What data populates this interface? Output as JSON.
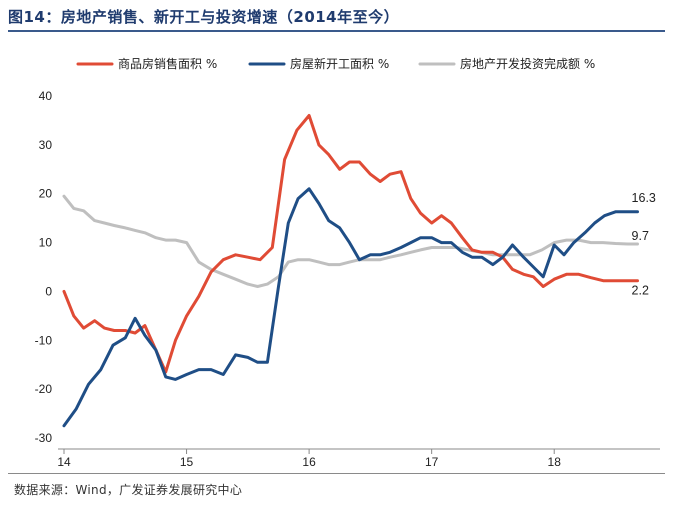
{
  "figure": {
    "title": "图14：房地产销售、新开工与投资增速（2014年至今）",
    "source": "数据来源：Wind，广发证券发展研究中心"
  },
  "chart_data": {
    "type": "line",
    "title": "房地产销售、新开工与投资增速（2014年至今）",
    "xlabel": "",
    "ylabel": "",
    "ylim": [
      -30,
      40
    ],
    "yticks": [
      -30,
      -20,
      -10,
      0,
      10,
      20,
      30,
      40
    ],
    "ytick_labels": [
      "-30",
      "-20",
      "-10",
      "0",
      "10",
      "20",
      "30",
      "40"
    ],
    "xlim": [
      2014.0,
      2018.7
    ],
    "xticks": [
      2014,
      2015,
      2016,
      2017,
      2018
    ],
    "xtick_labels": [
      "14",
      "15",
      "16",
      "17",
      "18"
    ],
    "grid": false,
    "legend_position": "top",
    "series": [
      {
        "name": "商品房销售面积 %",
        "color": "#e04b35",
        "end_label": "2.2",
        "x": [
          2014.0,
          2014.08,
          2014.16,
          2014.25,
          2014.33,
          2014.41,
          2014.5,
          2014.58,
          2014.66,
          2014.75,
          2014.83,
          2014.91,
          2015.0,
          2015.1,
          2015.2,
          2015.3,
          2015.4,
          2015.5,
          2015.6,
          2015.7,
          2015.8,
          2015.9,
          2016.0,
          2016.08,
          2016.16,
          2016.25,
          2016.33,
          2016.41,
          2016.5,
          2016.58,
          2016.66,
          2016.75,
          2016.83,
          2016.91,
          2017.0,
          2017.08,
          2017.16,
          2017.25,
          2017.33,
          2017.41,
          2017.5,
          2017.58,
          2017.66,
          2017.75,
          2017.83,
          2017.91,
          2018.0,
          2018.1,
          2018.2,
          2018.3,
          2018.4,
          2018.5,
          2018.6,
          2018.68
        ],
        "values": [
          0,
          -5,
          -7.5,
          -6,
          -7.5,
          -8,
          -8,
          -8.5,
          -7,
          -12,
          -16.5,
          -10,
          -5,
          -1,
          4,
          6.5,
          7.5,
          7,
          6.5,
          9,
          27,
          33,
          36,
          30,
          28,
          25,
          26.5,
          26.5,
          24,
          22.5,
          24,
          24.5,
          19,
          16,
          14,
          15.5,
          14,
          11,
          8.5,
          8,
          8,
          7,
          4.5,
          3.5,
          3,
          1,
          2.5,
          3.5,
          3.5,
          2.8,
          2.2,
          2.2,
          2.2,
          2.2
        ]
      },
      {
        "name": "房屋新开工面积 %",
        "color": "#1f4e86",
        "end_label": "16.3",
        "x": [
          2014.0,
          2014.1,
          2014.2,
          2014.3,
          2014.4,
          2014.5,
          2014.58,
          2014.66,
          2014.75,
          2014.83,
          2014.91,
          2015.0,
          2015.1,
          2015.2,
          2015.3,
          2015.4,
          2015.5,
          2015.58,
          2015.66,
          2015.75,
          2015.83,
          2015.91,
          2016.0,
          2016.08,
          2016.16,
          2016.25,
          2016.33,
          2016.41,
          2016.5,
          2016.58,
          2016.66,
          2016.75,
          2016.83,
          2016.91,
          2017.0,
          2017.08,
          2017.16,
          2017.25,
          2017.33,
          2017.41,
          2017.5,
          2017.58,
          2017.66,
          2017.75,
          2017.83,
          2017.91,
          2018.0,
          2018.08,
          2018.16,
          2018.25,
          2018.33,
          2018.41,
          2018.5,
          2018.58,
          2018.68
        ],
        "values": [
          -27.5,
          -24,
          -19,
          -16,
          -11,
          -9.5,
          -5.5,
          -9,
          -12,
          -17.5,
          -18,
          -17,
          -16,
          -16,
          -17,
          -13,
          -13.5,
          -14.5,
          -14.5,
          1,
          14,
          19,
          21,
          18,
          14.5,
          13,
          10,
          6.5,
          7.5,
          7.5,
          8,
          9,
          10,
          11,
          11,
          10,
          10,
          8,
          7,
          7,
          5.5,
          7,
          9.5,
          7,
          5,
          3,
          9.5,
          7.5,
          10,
          12,
          14,
          15.5,
          16.3,
          16.3,
          16.3
        ]
      },
      {
        "name": "房地产开发投资完成额 %",
        "color": "#bfbfbf",
        "end_label": "9.7",
        "x": [
          2014.0,
          2014.08,
          2014.16,
          2014.25,
          2014.33,
          2014.41,
          2014.5,
          2014.58,
          2014.66,
          2014.75,
          2014.83,
          2014.91,
          2015.0,
          2015.1,
          2015.2,
          2015.3,
          2015.4,
          2015.5,
          2015.58,
          2015.66,
          2015.75,
          2015.83,
          2015.91,
          2016.0,
          2016.08,
          2016.16,
          2016.25,
          2016.33,
          2016.41,
          2016.5,
          2016.58,
          2016.66,
          2016.75,
          2016.83,
          2016.91,
          2017.0,
          2017.1,
          2017.2,
          2017.3,
          2017.4,
          2017.5,
          2017.6,
          2017.7,
          2017.8,
          2017.9,
          2018.0,
          2018.1,
          2018.2,
          2018.3,
          2018.4,
          2018.5,
          2018.6,
          2018.68
        ],
        "values": [
          19.5,
          17,
          16.5,
          14.5,
          14,
          13.5,
          13,
          12.5,
          12,
          11,
          10.5,
          10.5,
          10,
          6,
          4.5,
          3.5,
          2.5,
          1.5,
          1,
          1.5,
          3,
          6,
          6.5,
          6.5,
          6,
          5.5,
          5.5,
          6,
          6.5,
          6.5,
          6.5,
          7,
          7.5,
          8,
          8.5,
          9,
          9,
          9,
          8.5,
          8,
          7.5,
          7.5,
          7.5,
          7.5,
          8.5,
          10,
          10.5,
          10.5,
          10,
          10,
          9.8,
          9.7,
          9.7
        ]
      }
    ]
  }
}
